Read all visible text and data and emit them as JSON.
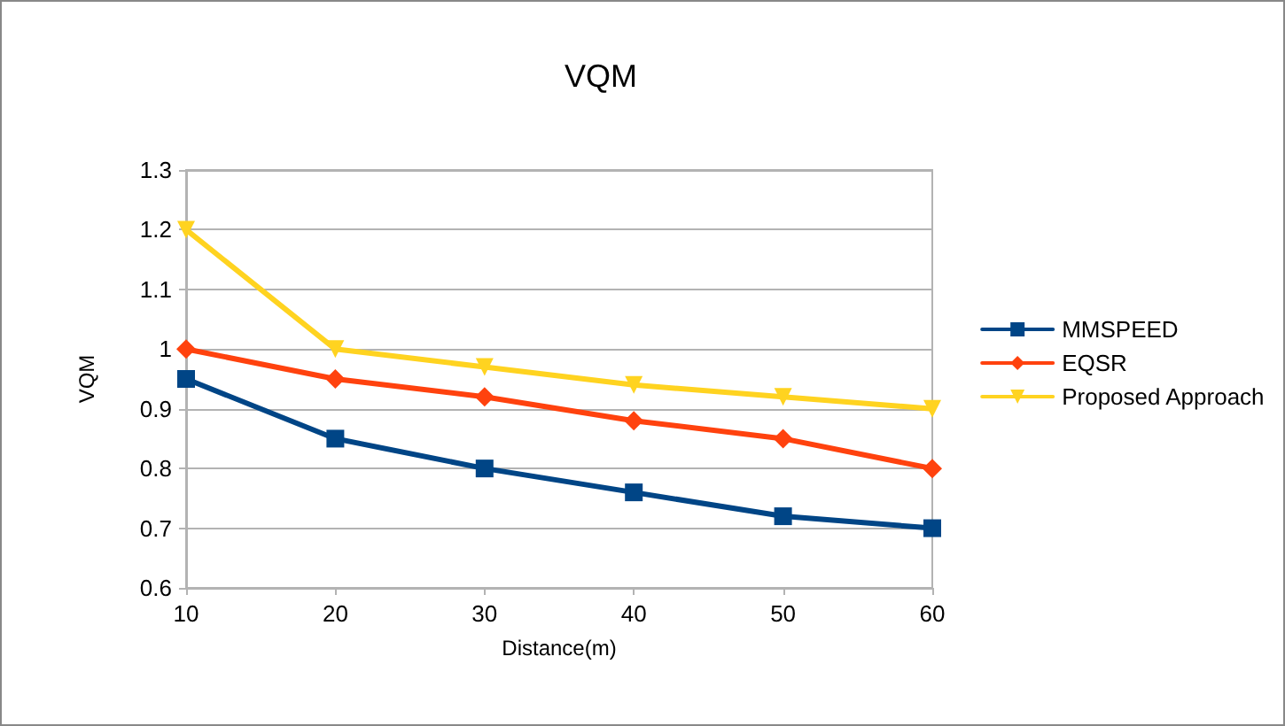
{
  "chart_data": {
    "type": "line",
    "title": "VQM",
    "xlabel": "Distance(m)",
    "ylabel": "VQM",
    "x": [
      10,
      20,
      30,
      40,
      50,
      60
    ],
    "series": [
      {
        "name": "MMSPEED",
        "color": "#004586",
        "marker": "square",
        "values": [
          0.95,
          0.85,
          0.8,
          0.76,
          0.72,
          0.7
        ]
      },
      {
        "name": "EQSR",
        "color": "#ff420e",
        "marker": "diamond",
        "values": [
          1.0,
          0.95,
          0.92,
          0.88,
          0.85,
          0.8
        ]
      },
      {
        "name": "Proposed Approach",
        "color": "#ffd320",
        "marker": "triangle",
        "values": [
          1.2,
          1.0,
          0.97,
          0.94,
          0.92,
          0.9
        ]
      }
    ],
    "xlim": [
      10,
      60
    ],
    "xticks": [
      10,
      20,
      30,
      40,
      50,
      60
    ],
    "ylim": [
      0.6,
      1.3
    ],
    "yticks": [
      0.6,
      0.7,
      0.8,
      0.9,
      1,
      1.1,
      1.2,
      1.3
    ],
    "grid": "y",
    "legend": "right",
    "line_style": "solid"
  }
}
